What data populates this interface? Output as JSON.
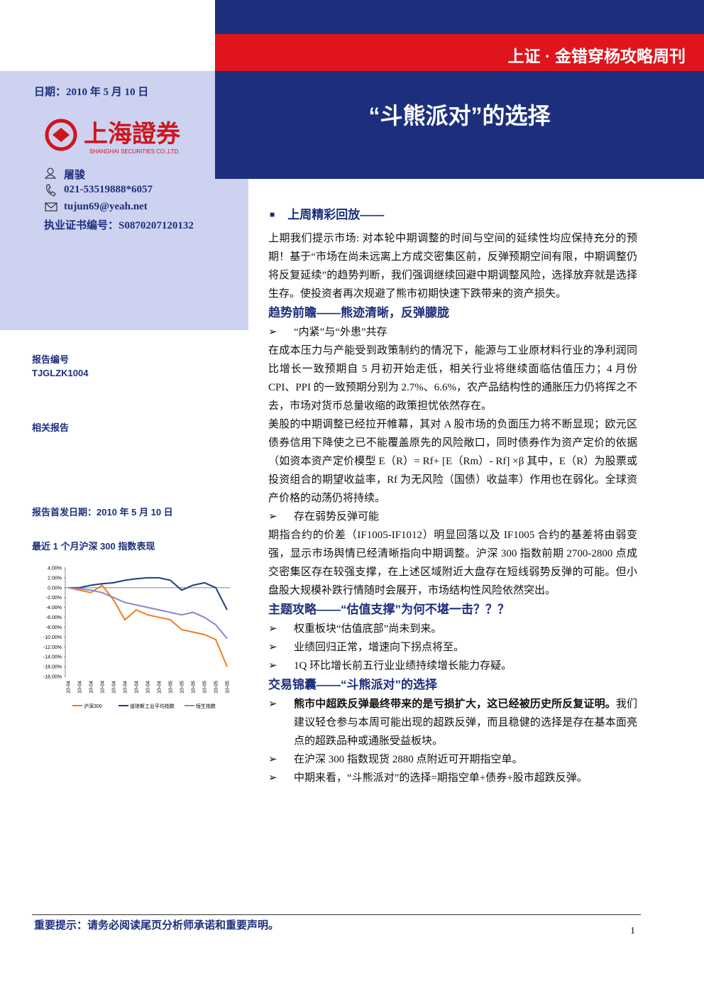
{
  "header": {
    "series_title": "上证 · 金错穿杨攻略周刊",
    "title": "“斗熊派对”的选择"
  },
  "sidebar": {
    "date": "日期：2010 年 5 月 10 日",
    "logo_name": "上海證券",
    "logo_english": "SHANGHAI SECURITIES CO.,LTD.",
    "author": "屠骏",
    "phone": "021-53519888*6057",
    "email": "tujun69@yeah.net",
    "cert": "执业证书编号：S0870207120132",
    "report_no_label": "报告编号",
    "report_no": "TJGLZK1004",
    "related": "相关报告",
    "first_date": "报告首发日期：2010 年 5 月 10 日",
    "chart_heading": "最近 1 个月沪深 300 指数表现"
  },
  "sections": [
    {
      "heading": "上周精彩回放——",
      "blocks": [
        {
          "kind": "p",
          "text": "上期我们提示市场: 对本轮中期调整的时间与空间的延续性均应保持充分的预期！基于“市场在尚未远离上方成交密集区前，反弹预期空间有限，中期调整仍将反复延续”的趋势判断，我们强调继续回避中期调整风险，选择放弃就是选择生存。使投资者再次规避了熊市初期快速下跌带来的资产损失。"
        }
      ]
    },
    {
      "heading": "趋势前瞻——熊迹清晰，反弹朦胧",
      "blocks": [
        {
          "kind": "bullet",
          "text": "“内紧”与“外患”共存"
        },
        {
          "kind": "p",
          "text": "在成本压力与产能受到政策制约的情况下，能源与工业原材料行业的净利润同比增长一致预期自 5 月初开始走低，相关行业将继续面临估值压力；4 月份 CPI、PPI 的一致预期分别为 2.7%、6.6%，农产品结构性的通胀压力仍将挥之不去，市场对货币总量收缩的政策担忧依然存在。"
        },
        {
          "kind": "p",
          "text": "美股的中期调整已经拉开帷幕，其对 A 股市场的负面压力将不断显现；欧元区债券信用下降使之已不能覆盖原先的风险敞口，同时债券作为资产定价的依据（如资本资产定价模型 E（R）= Rf+ [E（Rm）- Rf] ×β 其中，E（R）为股票或投资组合的期望收益率，Rf 为无风险（国债）收益率）作用也在弱化。全球资产价格的动荡仍将持续。"
        },
        {
          "kind": "bullet",
          "text": "存在弱势反弹可能"
        },
        {
          "kind": "p",
          "text": "期指合约的价差（IF1005-IF1012）明显回落以及 IF1005 合约的基差将由弱变强，显示市场舆情已经清晰指向中期调整。沪深 300 指数前期 2700-2800 点成交密集区存在较强支撑，在上述区域附近大盘存在短线弱势反弹的可能。但小盘股大规模补跌行情随时会展开，市场结构性风险依然突出。"
        }
      ]
    },
    {
      "heading": "主题攻略——“估值支撑”为何不堪一击？？？",
      "blocks": [
        {
          "kind": "bullet",
          "text": "权重板块“估值底部”尚未到来。"
        },
        {
          "kind": "bullet",
          "text": "业绩回归正常，增速向下拐点将至。"
        },
        {
          "kind": "bullet",
          "text": "1Q 环比增长前五行业业绩持续增长能力存疑。"
        }
      ]
    },
    {
      "heading": "交易锦囊——“斗熊派对”的选择",
      "blocks": [
        {
          "kind": "bullet",
          "bold": "熊市中超跌反弹最终带来的是亏损扩大，这已经被历史所反复证明。",
          "text": "我们建议轻仓参与本周可能出现的超跌反弹，而且稳健的选择是存在基本面亮点的超跌品种或通胀受益板块。"
        },
        {
          "kind": "bullet",
          "text": "在沪深 300 指数现货 2880 点附近可开期指空单。"
        },
        {
          "kind": "bullet",
          "text": "中期来看，“斗熊派对”的选择=期指空单+债券+股市超跌反弹。"
        }
      ]
    }
  ],
  "footer": {
    "notice": "重要提示：请务必阅读尾页分析师承诺和重要声明。",
    "page": "1"
  },
  "chart_data": {
    "type": "line",
    "categories": [
      "10-04",
      "10-04",
      "10-04",
      "10-04",
      "10-04",
      "10-04",
      "10-04",
      "10-04",
      "10-04",
      "10-05",
      "10-05",
      "10-05",
      "10-05",
      "10-05",
      "10-05"
    ],
    "series": [
      {
        "name": "沪深300",
        "color": "#f07c1c",
        "values": [
          0,
          -0.5,
          -1,
          0.5,
          -2.5,
          -6.5,
          -4.5,
          -5.5,
          -6,
          -6.5,
          -8.5,
          -9,
          -9.5,
          -10.5,
          -16
        ]
      },
      {
        "name": "道琼斯工业平均指数",
        "color": "#1f3f7a",
        "values": [
          0,
          0,
          0.5,
          0.8,
          1,
          1.5,
          1.8,
          2,
          2,
          1.5,
          -0.5,
          0.5,
          1,
          0,
          -4.5
        ]
      },
      {
        "name": "恒生指数",
        "color": "#8a86c8",
        "values": [
          0,
          -0.2,
          -0.5,
          -1,
          -2,
          -3,
          -3.5,
          -4,
          -4.5,
          -5,
          -5.5,
          -5,
          -6,
          -7.5,
          -10.3
        ]
      }
    ],
    "ylim": [
      -18,
      4
    ],
    "yticks": [
      {
        "value": 4,
        "label": "4.00%"
      },
      {
        "value": 2,
        "label": "2.00%"
      },
      {
        "value": 0,
        "label": "0.00%"
      },
      {
        "value": -2,
        "label": "-2.00%"
      },
      {
        "value": -4,
        "label": "-4.00%"
      },
      {
        "value": -6,
        "label": "-6.00%"
      },
      {
        "value": -8,
        "label": "-8.00%"
      },
      {
        "value": -10,
        "label": "-10.00%"
      },
      {
        "value": -12,
        "label": "-12.00%"
      },
      {
        "value": -14,
        "label": "-14.00%"
      },
      {
        "value": -16,
        "label": "-16.00%"
      },
      {
        "value": -18,
        "label": "-18.00%"
      }
    ]
  }
}
